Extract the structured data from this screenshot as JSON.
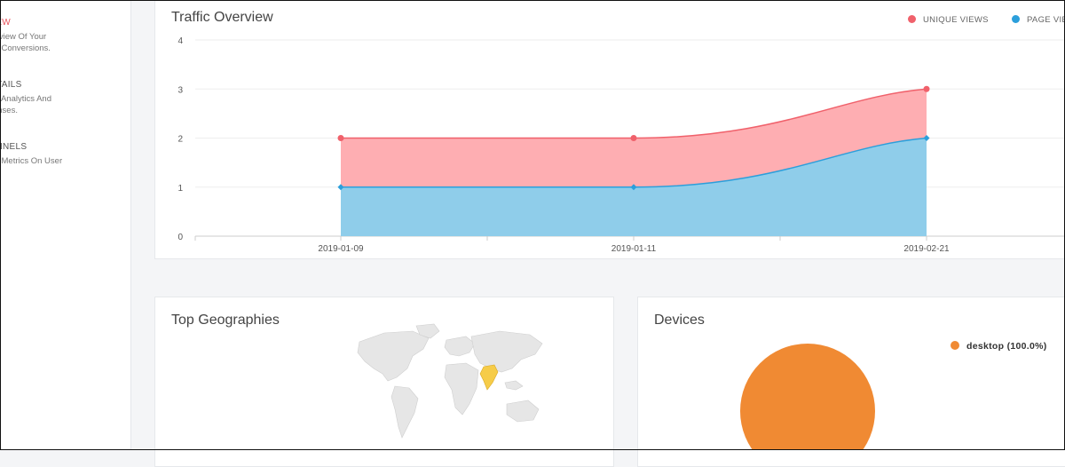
{
  "sidebar": {
    "items": [
      {
        "title": "VERVIEW",
        "desc": "An Overview Of Your\ntors And Conversions.",
        "active": true
      },
      {
        "title": "ER DETAILS",
        "desc": "Detailed Analytics And\nr Responses.",
        "active": false
      },
      {
        "title": "ER FUNNELS",
        "desc": "Detailed Metrics On User\nws.",
        "active": false
      }
    ]
  },
  "traffic": {
    "title": "Traffic Overview",
    "legend": [
      {
        "label": "UNIQUE VIEWS",
        "color": "#f0616b"
      },
      {
        "label": "PAGE VIE",
        "color": "#2c9fdb"
      }
    ]
  },
  "geo": {
    "title": "Top Geographies",
    "highlight_color": "#f6cc48"
  },
  "devices": {
    "title": "Devices",
    "legend_label": "desktop (100.0%)",
    "color": "#f08a33"
  },
  "chart_data": [
    {
      "type": "area",
      "title": "Traffic Overview",
      "x": [
        "2019-01-09",
        "2019-01-11",
        "2019-02-21"
      ],
      "series": [
        {
          "name": "UNIQUE VIEWS",
          "values": [
            2,
            2,
            3
          ],
          "color": "#f0616b"
        },
        {
          "name": "PAGE VIE",
          "values": [
            1,
            1,
            2
          ],
          "color": "#2c9fdb"
        }
      ],
      "yticks": [
        0,
        1,
        2,
        3,
        4
      ],
      "ylim": [
        0,
        4
      ],
      "grid": true,
      "legend": "top-right"
    },
    {
      "type": "pie",
      "title": "Devices",
      "categories": [
        "desktop"
      ],
      "values": [
        100.0
      ],
      "legend": "right"
    }
  ]
}
